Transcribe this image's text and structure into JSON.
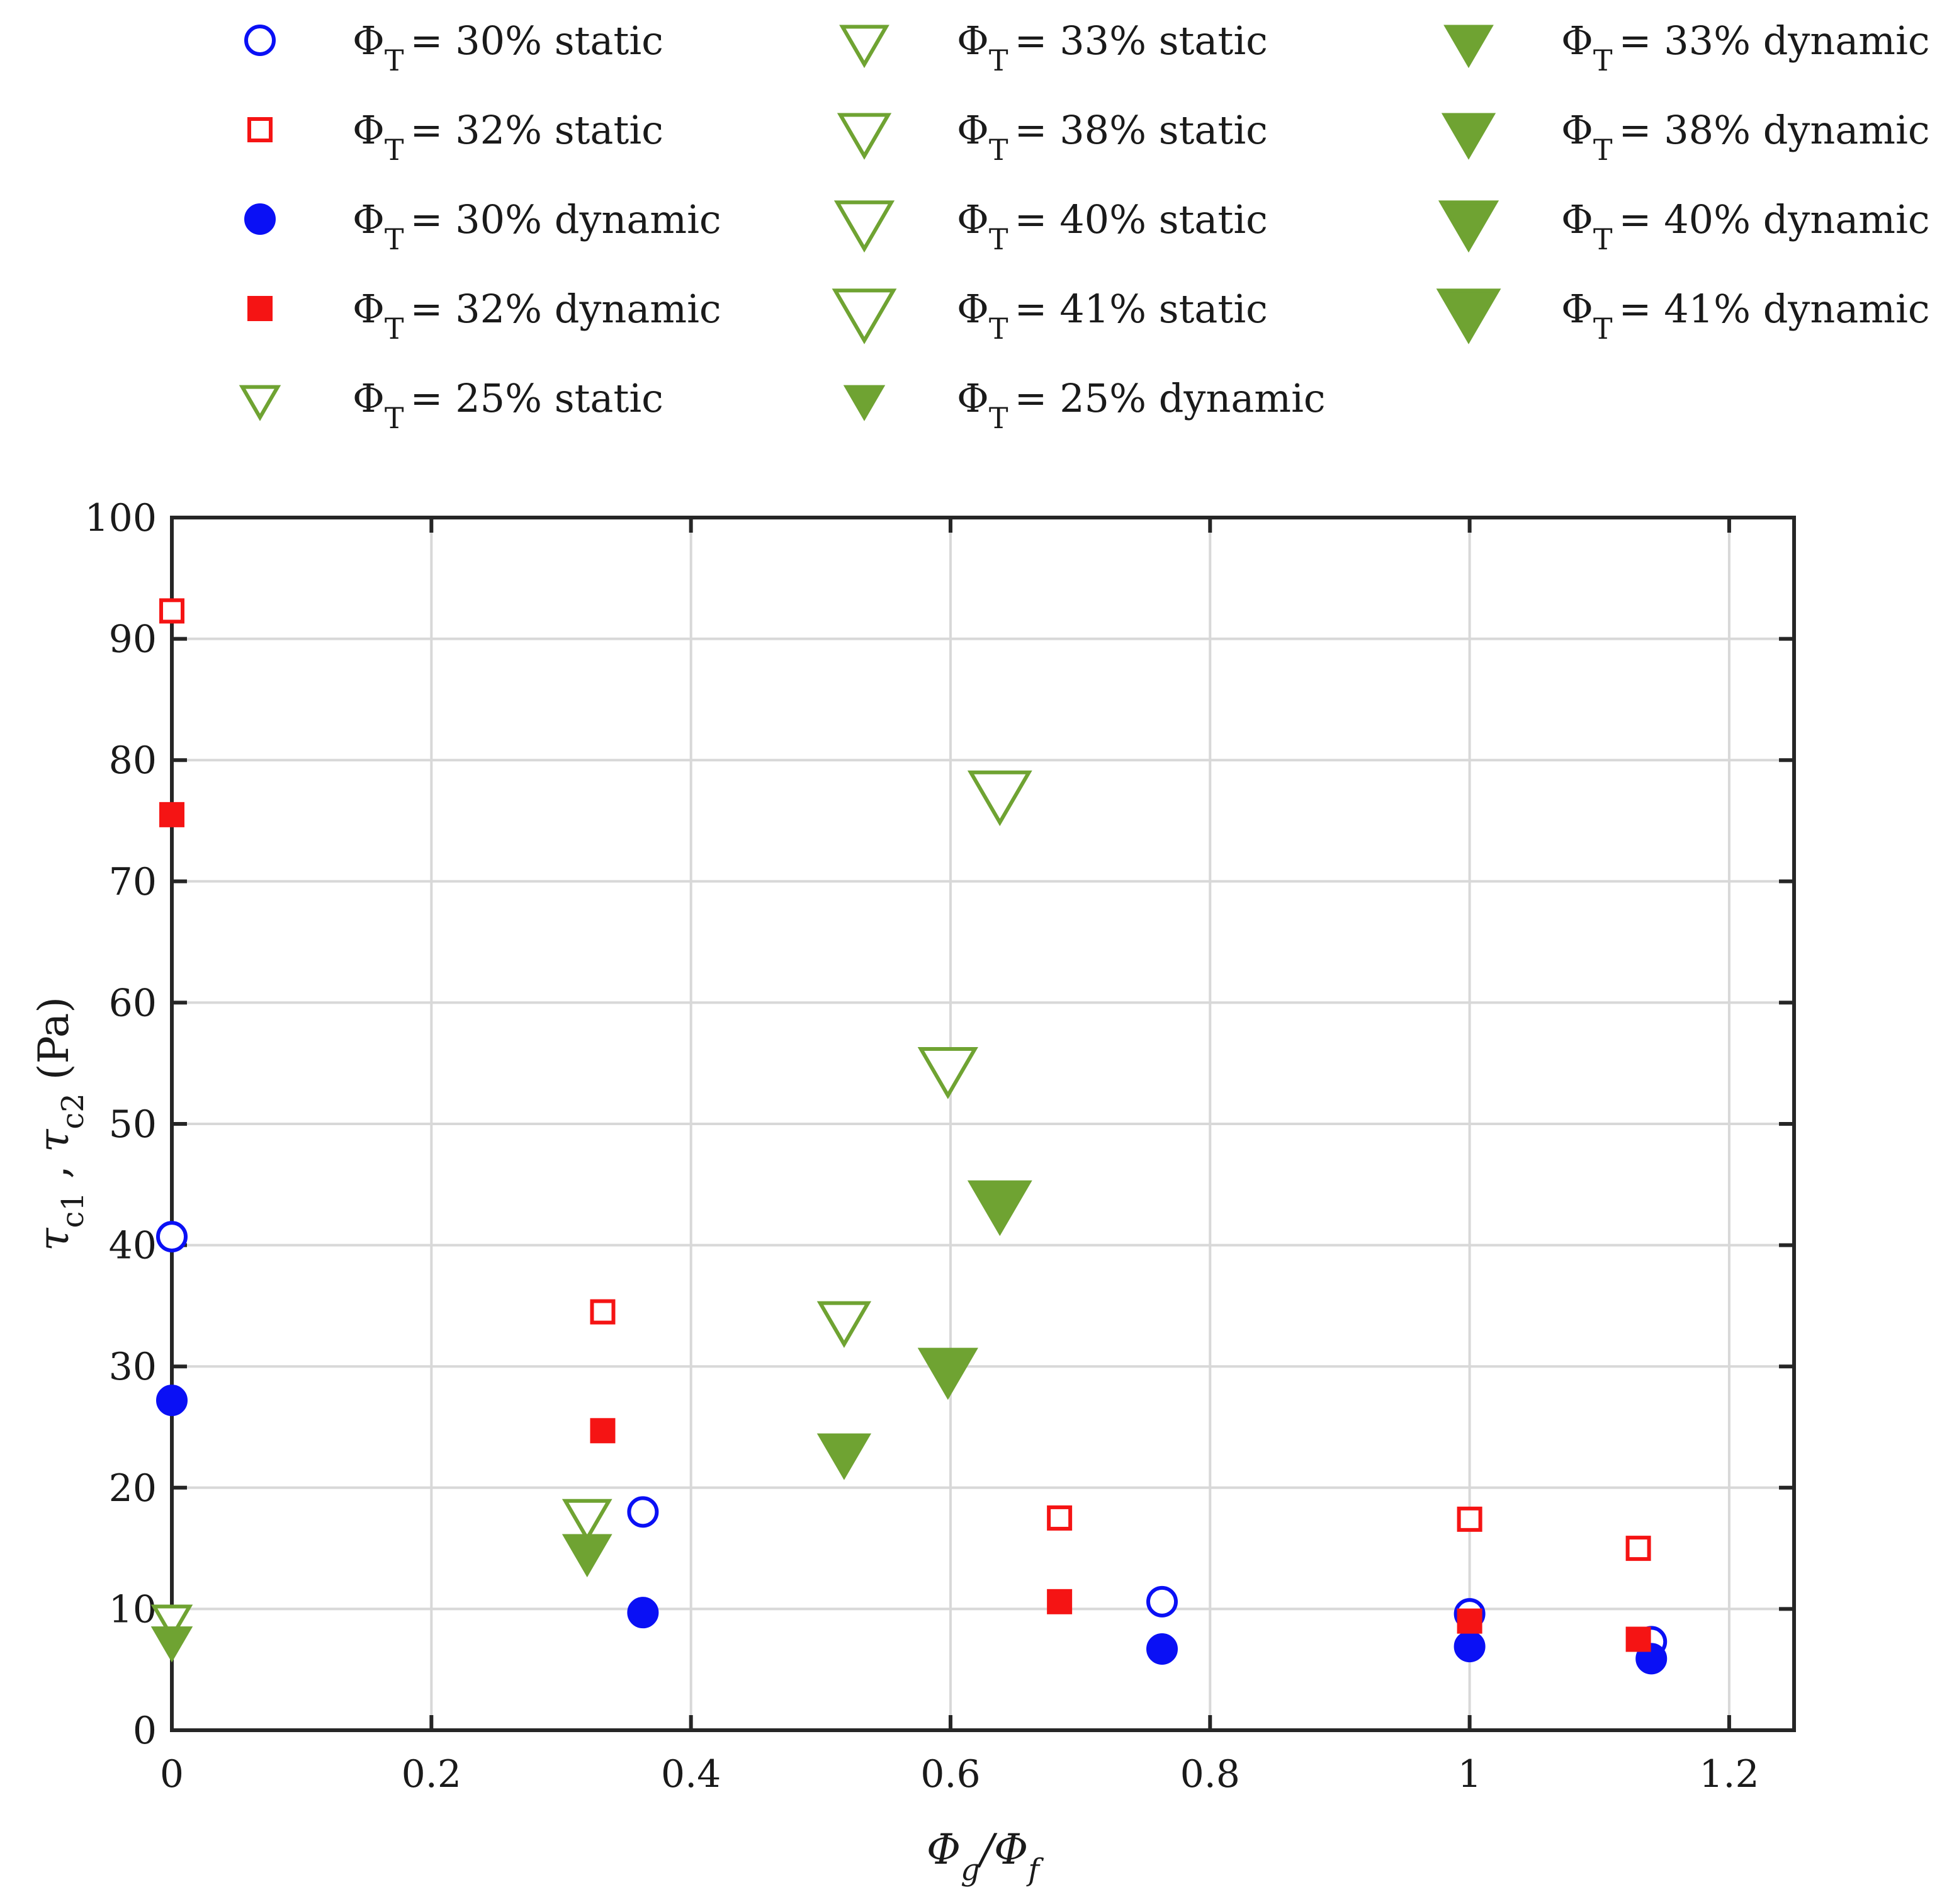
{
  "chart_data": {
    "type": "scatter",
    "title": "",
    "xlabel": "Φg/Φf",
    "ylabel": "τc1 , τc2 (Pa)",
    "xlim": [
      0,
      1.25
    ],
    "ylim": [
      0,
      100
    ],
    "xticks": [
      "0",
      "0.2",
      "0.4",
      "0.6",
      "0.8",
      "1",
      "1.2"
    ],
    "yticks": [
      "0",
      "10",
      "20",
      "30",
      "40",
      "50",
      "60",
      "70",
      "80",
      "90",
      "100"
    ],
    "grid": true,
    "legend_position": "top",
    "legend_prefix": "Φ",
    "legend_subscript": "T",
    "colors": {
      "blue": "#0a10f5",
      "red": "#f51414",
      "green": "#6fa332"
    },
    "series": [
      {
        "name": "30% static",
        "marker": "circle",
        "filled": false,
        "color": "blue",
        "size": 1.0,
        "x": [
          0,
          0.363,
          0.763,
          1.0,
          1.14
        ],
        "y": [
          40.7,
          18.0,
          10.6,
          9.6,
          7.3
        ]
      },
      {
        "name": "32% static",
        "marker": "square",
        "filled": false,
        "color": "red",
        "size": 1.0,
        "x": [
          0,
          0.332,
          0.684,
          1.0,
          1.13
        ],
        "y": [
          92.3,
          34.5,
          17.5,
          17.4,
          15.0
        ]
      },
      {
        "name": "30% dynamic",
        "marker": "circle",
        "filled": true,
        "color": "blue",
        "size": 1.0,
        "x": [
          0,
          0.363,
          0.763,
          1.0,
          1.14
        ],
        "y": [
          27.2,
          9.7,
          6.7,
          6.9,
          5.9
        ]
      },
      {
        "name": "32% dynamic",
        "marker": "square",
        "filled": true,
        "color": "red",
        "size": 1.0,
        "x": [
          0,
          0.332,
          0.684,
          1.0,
          1.13
        ],
        "y": [
          75.5,
          24.7,
          10.6,
          9.0,
          7.5
        ]
      },
      {
        "name": "25% static",
        "marker": "triangle-down",
        "filled": false,
        "color": "green",
        "size": 0.85,
        "x": [
          0
        ],
        "y": [
          9.3
        ]
      },
      {
        "name": "33% static",
        "marker": "triangle-down",
        "filled": false,
        "color": "green",
        "size": 1.05,
        "x": [
          0.32
        ],
        "y": [
          17.8
        ]
      },
      {
        "name": "38% static",
        "marker": "triangle-down",
        "filled": false,
        "color": "green",
        "size": 1.15,
        "x": [
          0.518
        ],
        "y": [
          34.0
        ]
      },
      {
        "name": "40% static",
        "marker": "triangle-down",
        "filled": false,
        "color": "green",
        "size": 1.3,
        "x": [
          0.598
        ],
        "y": [
          54.8
        ]
      },
      {
        "name": "41% static",
        "marker": "triangle-down",
        "filled": false,
        "color": "green",
        "size": 1.4,
        "x": [
          0.638
        ],
        "y": [
          77.5
        ]
      },
      {
        "name": "25% dynamic",
        "marker": "triangle-down",
        "filled": true,
        "color": "green",
        "size": 0.85,
        "x": [
          0
        ],
        "y": [
          7.5
        ]
      },
      {
        "name": "33% dynamic",
        "marker": "triangle-down",
        "filled": true,
        "color": "green",
        "size": 1.05,
        "x": [
          0.32
        ],
        "y": [
          14.9
        ]
      },
      {
        "name": "38% dynamic",
        "marker": "triangle-down",
        "filled": true,
        "color": "green",
        "size": 1.15,
        "x": [
          0.518
        ],
        "y": [
          23.1
        ]
      },
      {
        "name": "40% dynamic",
        "marker": "triangle-down",
        "filled": true,
        "color": "green",
        "size": 1.3,
        "x": [
          0.598
        ],
        "y": [
          30.0
        ]
      },
      {
        "name": "41% dynamic",
        "marker": "triangle-down",
        "filled": true,
        "color": "green",
        "size": 1.4,
        "x": [
          0.638
        ],
        "y": [
          43.7
        ]
      }
    ],
    "legend": [
      {
        "series": 0,
        "label": "= 30% static"
      },
      {
        "series": 1,
        "label": "= 32% static"
      },
      {
        "series": 2,
        "label": "= 30% dynamic"
      },
      {
        "series": 3,
        "label": "= 32% dynamic"
      },
      {
        "series": 4,
        "label": "= 25% static"
      },
      {
        "series": 5,
        "label": "= 33% static"
      },
      {
        "series": 6,
        "label": "= 38% static"
      },
      {
        "series": 7,
        "label": "= 40% static"
      },
      {
        "series": 8,
        "label": "= 41% static"
      },
      {
        "series": 9,
        "label": "= 25% dynamic"
      },
      {
        "series": 10,
        "label": "= 33% dynamic"
      },
      {
        "series": 11,
        "label": "= 38% dynamic"
      },
      {
        "series": 12,
        "label": "= 40% dynamic"
      },
      {
        "series": 13,
        "label": "= 41% dynamic"
      }
    ]
  }
}
